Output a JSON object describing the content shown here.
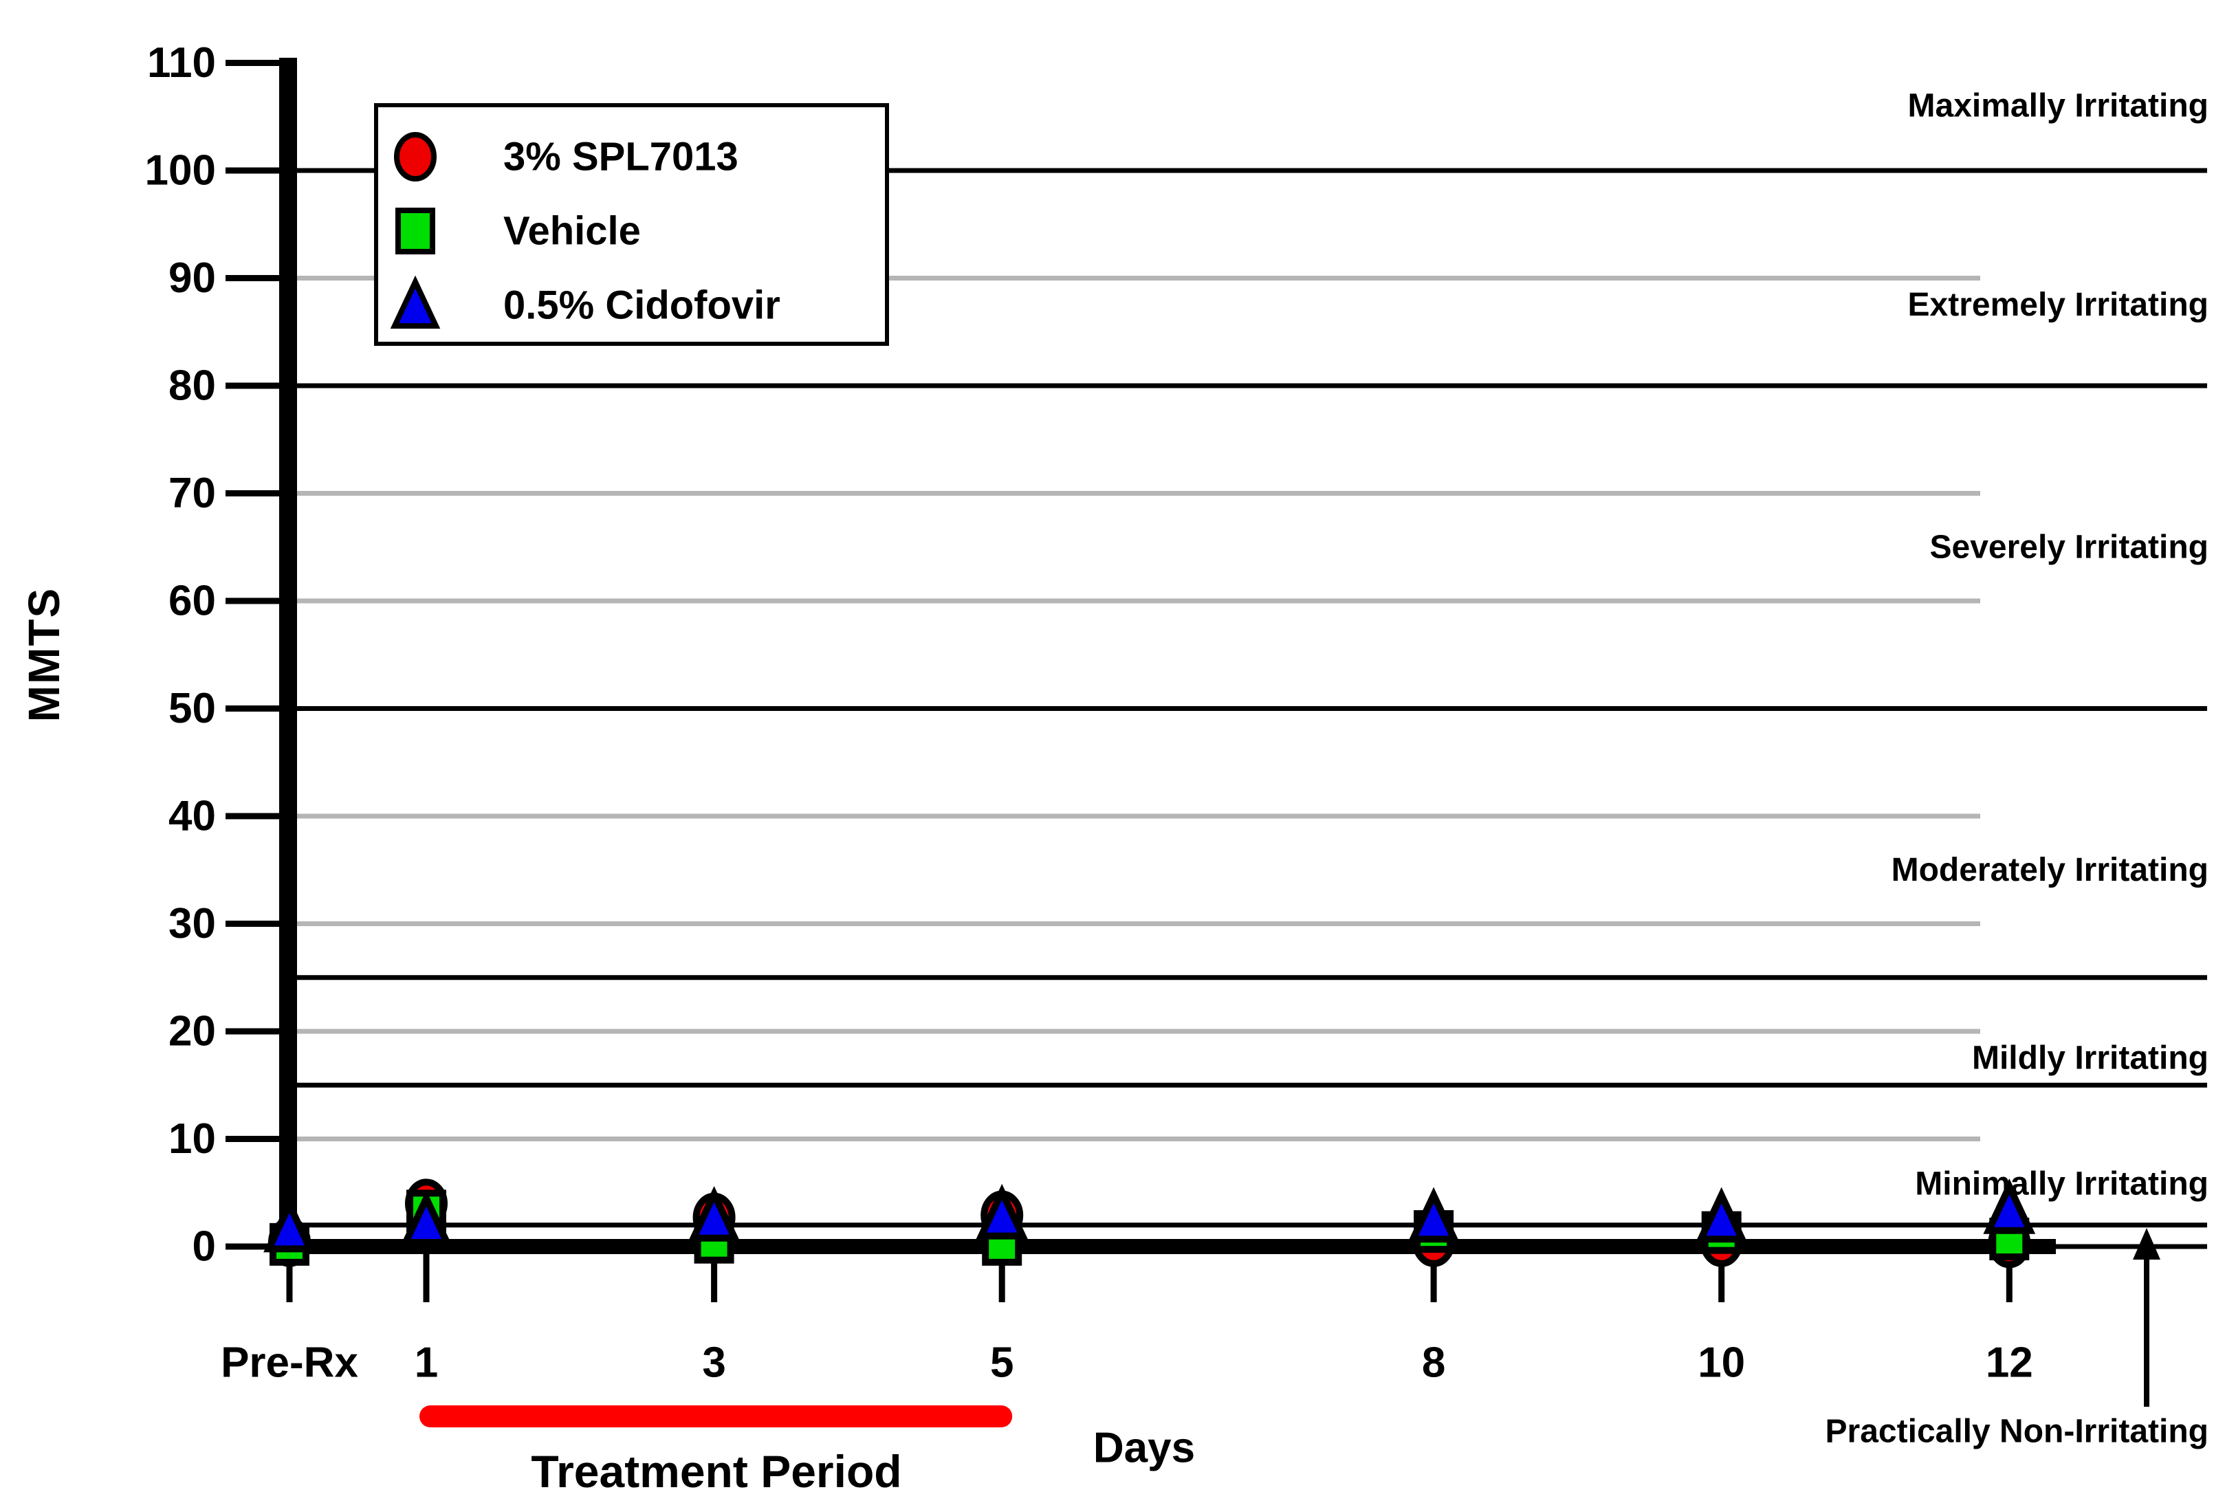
{
  "colors": {
    "background": "#ffffff",
    "black": "#000000",
    "gray_gridline": "#b5b5b5",
    "spl7013": "#ee0000",
    "vehicle": "#00dd00",
    "cidofovir": "#0000ee",
    "treatment_bar": "#ff0000"
  },
  "y_axis": {
    "title": "MMTS",
    "tick_labels": [
      "110",
      "100",
      "90",
      "80",
      "70",
      "60",
      "50",
      "40",
      "30",
      "20",
      "10",
      "0"
    ],
    "tick_values": [
      110,
      100,
      90,
      80,
      70,
      60,
      50,
      40,
      30,
      20,
      10,
      0
    ]
  },
  "x_axis": {
    "title": "Days",
    "tick_labels": [
      "Pre-Rx",
      "1",
      "3",
      "5",
      "8",
      "10",
      "12"
    ],
    "tick_days": [
      0,
      1,
      3,
      5,
      8,
      10,
      12
    ]
  },
  "legend": {
    "items": [
      {
        "label": "3% SPL7013",
        "marker": "circle",
        "color_key": "spl7013"
      },
      {
        "label": "Vehicle",
        "marker": "square",
        "color_key": "vehicle"
      },
      {
        "label": "0.5% Cidofovir",
        "marker": "triangle",
        "color_key": "cidofovir"
      }
    ]
  },
  "gridlines": [
    {
      "value": 100,
      "color_key": "black"
    },
    {
      "value": 90,
      "color_key": "gray_gridline"
    },
    {
      "value": 80,
      "color_key": "black"
    },
    {
      "value": 70,
      "color_key": "gray_gridline"
    },
    {
      "value": 60,
      "color_key": "gray_gridline"
    },
    {
      "value": 50,
      "color_key": "black"
    },
    {
      "value": 40,
      "color_key": "gray_gridline"
    },
    {
      "value": 30,
      "color_key": "gray_gridline"
    },
    {
      "value": 25,
      "color_key": "black"
    },
    {
      "value": 20,
      "color_key": "gray_gridline"
    },
    {
      "value": 15,
      "color_key": "black"
    },
    {
      "value": 10,
      "color_key": "gray_gridline"
    },
    {
      "value": 2,
      "color_key": "black"
    }
  ],
  "irritation_bands": [
    {
      "text": "Maximally Irritating",
      "label_value": 106
    },
    {
      "text": "Extremely Irritating",
      "label_value": 87.5
    },
    {
      "text": "Severely Irritating",
      "label_value": 65
    },
    {
      "text": "Moderately Irritating",
      "label_value": 35
    },
    {
      "text": "Mildly Irritating",
      "label_value": 17.5
    },
    {
      "text": "Minimally Irritating",
      "label_value": 5.8
    },
    {
      "text": "Practically Non-Irritating",
      "label_value": -17.2
    }
  ],
  "annotations": {
    "treatment_period": {
      "label": "Treatment Period",
      "day_start": 1,
      "day_end": 5,
      "color_key": "treatment_bar"
    },
    "non_irritating_arrow": {
      "points_to_value": 2,
      "direction": "up"
    }
  },
  "chart_data": {
    "type": "scatter",
    "title": "",
    "xlabel": "Days",
    "ylabel": "MMTS",
    "ylim": [
      0,
      110
    ],
    "x_days": [
      0,
      1,
      3,
      5,
      8,
      10,
      12
    ],
    "x_labels": [
      "Pre-Rx",
      "1",
      "3",
      "5",
      "8",
      "10",
      "12"
    ],
    "legend_position": "upper-left-inside",
    "grid": "horizontal-only",
    "marker_draw_order": [
      "circle-back",
      "square-middle",
      "triangle-front"
    ],
    "series": [
      {
        "name": "3% SPL7013",
        "marker": "circle",
        "color_key": "spl7013",
        "values": [
          0.4,
          4.0,
          2.7,
          2.9,
          0.4,
          0.4,
          0.3
        ]
      },
      {
        "name": "Vehicle",
        "marker": "square",
        "color_key": "vehicle",
        "values": [
          0.2,
          3.3,
          0.4,
          0.2,
          1.4,
          1.3,
          0.7
        ]
      },
      {
        "name": "0.5% Cidofovir",
        "marker": "triangle",
        "color_key": "cidofovir",
        "values": [
          1.7,
          2.3,
          2.7,
          2.9,
          2.6,
          2.6,
          3.4
        ]
      }
    ]
  }
}
